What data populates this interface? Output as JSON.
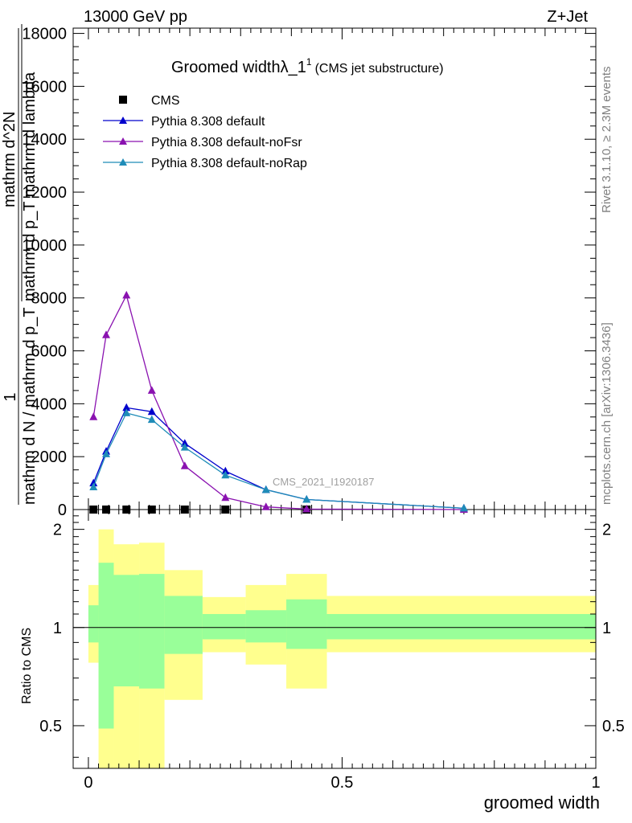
{
  "header": {
    "energy": "13000 GeV pp",
    "process": "Z+Jet"
  },
  "side_labels": {
    "rivet": "Rivet 3.1.10, ≥ 2.3M events",
    "mcplots": "mcplots.cern.ch [arXiv:1306.3436]"
  },
  "chart_data": [
    {
      "type": "line",
      "title_main": "Groomed widthλ_1",
      "title_sup": "1",
      "title_sub": "(CMS jet substructure)",
      "ylabel_num": "1",
      "ylabel_den": "mathrm d N / mathrm d p_T",
      "ylabel_frac_num": "mathrm d^2N",
      "ylabel_frac_den": "mathrm d p_T mathrm d lambda",
      "analysis": "CMS_2021_I1920187",
      "xlim": [
        -0.03,
        1.0
      ],
      "ylim": [
        0,
        18200
      ],
      "yticks": [
        0,
        2000,
        4000,
        6000,
        8000,
        10000,
        12000,
        14000,
        16000,
        18000
      ],
      "ytick_labels": [
        "0",
        "2000",
        "4000",
        "6000",
        "8000",
        "10000",
        "12000",
        "14000",
        "16000",
        "18000"
      ],
      "x": [
        0.01,
        0.035,
        0.075,
        0.125,
        0.19,
        0.27,
        0.35,
        0.43,
        0.74
      ],
      "series": [
        {
          "name": "CMS",
          "color": "#000000",
          "marker": "square",
          "x": [
            0.01,
            0.035,
            0.075,
            0.125,
            0.19,
            0.27,
            0.43
          ],
          "values": [
            0,
            0,
            0,
            0,
            0,
            0,
            0
          ]
        },
        {
          "name": "Pythia 8.308 default",
          "color": "#0000cc",
          "marker": "triangle",
          "values": [
            1000,
            2200,
            3850,
            3700,
            2500,
            1450,
            750,
            380,
            50
          ]
        },
        {
          "name": "Pythia 8.308 default-noFsr",
          "color": "#8a12b0",
          "marker": "triangle",
          "values": [
            3500,
            6600,
            8100,
            4500,
            1650,
            450,
            100,
            20,
            0
          ]
        },
        {
          "name": "Pythia 8.308 default-noRap",
          "color": "#1f8cb8",
          "marker": "triangle",
          "values": [
            850,
            2100,
            3650,
            3400,
            2350,
            1300,
            750,
            380,
            50
          ]
        }
      ]
    },
    {
      "type": "area",
      "ylabel": "Ratio to CMS",
      "xlabel": "groomed width",
      "xlim": [
        -0.03,
        1.0
      ],
      "ylim": [
        0.37,
        2.3
      ],
      "log_scale_y": true,
      "yticks": [
        0.5,
        1,
        2
      ],
      "ytick_labels": [
        "0.5",
        "1",
        "2"
      ],
      "xticks": [
        0,
        0.5,
        1
      ],
      "xtick_labels": [
        "0",
        "0.5",
        "1"
      ],
      "reference": 1,
      "bins": [
        {
          "x0": 0.0,
          "x1": 0.02,
          "green": [
            0.9,
            1.17
          ],
          "yellow": [
            0.78,
            1.35
          ]
        },
        {
          "x0": 0.02,
          "x1": 0.05,
          "green": [
            0.49,
            1.58
          ],
          "yellow": [
            0.3,
            2.0
          ]
        },
        {
          "x0": 0.05,
          "x1": 0.1,
          "green": [
            0.66,
            1.45
          ],
          "yellow": [
            0.3,
            1.8
          ]
        },
        {
          "x0": 0.1,
          "x1": 0.15,
          "green": [
            0.65,
            1.46
          ],
          "yellow": [
            0.3,
            1.82
          ]
        },
        {
          "x0": 0.15,
          "x1": 0.225,
          "green": [
            0.83,
            1.25
          ],
          "yellow": [
            0.6,
            1.5
          ]
        },
        {
          "x0": 0.225,
          "x1": 0.31,
          "green": [
            0.92,
            1.1
          ],
          "yellow": [
            0.84,
            1.24
          ]
        },
        {
          "x0": 0.31,
          "x1": 0.39,
          "green": [
            0.9,
            1.13
          ],
          "yellow": [
            0.77,
            1.35
          ]
        },
        {
          "x0": 0.39,
          "x1": 0.47,
          "green": [
            0.86,
            1.22
          ],
          "yellow": [
            0.65,
            1.46
          ]
        },
        {
          "x0": 0.47,
          "x1": 1.0,
          "green": [
            0.92,
            1.1
          ],
          "yellow": [
            0.84,
            1.25
          ]
        }
      ],
      "band_colors": {
        "green": "#99ff99",
        "yellow": "#ffff8e"
      }
    }
  ]
}
